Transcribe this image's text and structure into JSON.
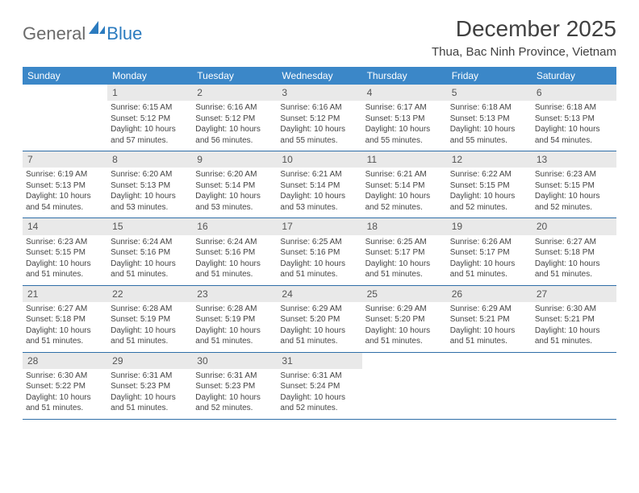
{
  "logo": {
    "general": "General",
    "blue": "Blue"
  },
  "title": "December 2025",
  "location": "Thua, Bac Ninh Province, Vietnam",
  "weekdays": [
    "Sunday",
    "Monday",
    "Tuesday",
    "Wednesday",
    "Thursday",
    "Friday",
    "Saturday"
  ],
  "header_bg": "#3b87c8",
  "daynum_bg": "#e9e9e9",
  "row_border": "#2f6ea8",
  "weeks": [
    [
      null,
      {
        "n": "1",
        "sr": "Sunrise: 6:15 AM",
        "ss": "Sunset: 5:12 PM",
        "dl": "Daylight: 10 hours and 57 minutes."
      },
      {
        "n": "2",
        "sr": "Sunrise: 6:16 AM",
        "ss": "Sunset: 5:12 PM",
        "dl": "Daylight: 10 hours and 56 minutes."
      },
      {
        "n": "3",
        "sr": "Sunrise: 6:16 AM",
        "ss": "Sunset: 5:12 PM",
        "dl": "Daylight: 10 hours and 55 minutes."
      },
      {
        "n": "4",
        "sr": "Sunrise: 6:17 AM",
        "ss": "Sunset: 5:13 PM",
        "dl": "Daylight: 10 hours and 55 minutes."
      },
      {
        "n": "5",
        "sr": "Sunrise: 6:18 AM",
        "ss": "Sunset: 5:13 PM",
        "dl": "Daylight: 10 hours and 55 minutes."
      },
      {
        "n": "6",
        "sr": "Sunrise: 6:18 AM",
        "ss": "Sunset: 5:13 PM",
        "dl": "Daylight: 10 hours and 54 minutes."
      }
    ],
    [
      {
        "n": "7",
        "sr": "Sunrise: 6:19 AM",
        "ss": "Sunset: 5:13 PM",
        "dl": "Daylight: 10 hours and 54 minutes."
      },
      {
        "n": "8",
        "sr": "Sunrise: 6:20 AM",
        "ss": "Sunset: 5:13 PM",
        "dl": "Daylight: 10 hours and 53 minutes."
      },
      {
        "n": "9",
        "sr": "Sunrise: 6:20 AM",
        "ss": "Sunset: 5:14 PM",
        "dl": "Daylight: 10 hours and 53 minutes."
      },
      {
        "n": "10",
        "sr": "Sunrise: 6:21 AM",
        "ss": "Sunset: 5:14 PM",
        "dl": "Daylight: 10 hours and 53 minutes."
      },
      {
        "n": "11",
        "sr": "Sunrise: 6:21 AM",
        "ss": "Sunset: 5:14 PM",
        "dl": "Daylight: 10 hours and 52 minutes."
      },
      {
        "n": "12",
        "sr": "Sunrise: 6:22 AM",
        "ss": "Sunset: 5:15 PM",
        "dl": "Daylight: 10 hours and 52 minutes."
      },
      {
        "n": "13",
        "sr": "Sunrise: 6:23 AM",
        "ss": "Sunset: 5:15 PM",
        "dl": "Daylight: 10 hours and 52 minutes."
      }
    ],
    [
      {
        "n": "14",
        "sr": "Sunrise: 6:23 AM",
        "ss": "Sunset: 5:15 PM",
        "dl": "Daylight: 10 hours and 51 minutes."
      },
      {
        "n": "15",
        "sr": "Sunrise: 6:24 AM",
        "ss": "Sunset: 5:16 PM",
        "dl": "Daylight: 10 hours and 51 minutes."
      },
      {
        "n": "16",
        "sr": "Sunrise: 6:24 AM",
        "ss": "Sunset: 5:16 PM",
        "dl": "Daylight: 10 hours and 51 minutes."
      },
      {
        "n": "17",
        "sr": "Sunrise: 6:25 AM",
        "ss": "Sunset: 5:16 PM",
        "dl": "Daylight: 10 hours and 51 minutes."
      },
      {
        "n": "18",
        "sr": "Sunrise: 6:25 AM",
        "ss": "Sunset: 5:17 PM",
        "dl": "Daylight: 10 hours and 51 minutes."
      },
      {
        "n": "19",
        "sr": "Sunrise: 6:26 AM",
        "ss": "Sunset: 5:17 PM",
        "dl": "Daylight: 10 hours and 51 minutes."
      },
      {
        "n": "20",
        "sr": "Sunrise: 6:27 AM",
        "ss": "Sunset: 5:18 PM",
        "dl": "Daylight: 10 hours and 51 minutes."
      }
    ],
    [
      {
        "n": "21",
        "sr": "Sunrise: 6:27 AM",
        "ss": "Sunset: 5:18 PM",
        "dl": "Daylight: 10 hours and 51 minutes."
      },
      {
        "n": "22",
        "sr": "Sunrise: 6:28 AM",
        "ss": "Sunset: 5:19 PM",
        "dl": "Daylight: 10 hours and 51 minutes."
      },
      {
        "n": "23",
        "sr": "Sunrise: 6:28 AM",
        "ss": "Sunset: 5:19 PM",
        "dl": "Daylight: 10 hours and 51 minutes."
      },
      {
        "n": "24",
        "sr": "Sunrise: 6:29 AM",
        "ss": "Sunset: 5:20 PM",
        "dl": "Daylight: 10 hours and 51 minutes."
      },
      {
        "n": "25",
        "sr": "Sunrise: 6:29 AM",
        "ss": "Sunset: 5:20 PM",
        "dl": "Daylight: 10 hours and 51 minutes."
      },
      {
        "n": "26",
        "sr": "Sunrise: 6:29 AM",
        "ss": "Sunset: 5:21 PM",
        "dl": "Daylight: 10 hours and 51 minutes."
      },
      {
        "n": "27",
        "sr": "Sunrise: 6:30 AM",
        "ss": "Sunset: 5:21 PM",
        "dl": "Daylight: 10 hours and 51 minutes."
      }
    ],
    [
      {
        "n": "28",
        "sr": "Sunrise: 6:30 AM",
        "ss": "Sunset: 5:22 PM",
        "dl": "Daylight: 10 hours and 51 minutes."
      },
      {
        "n": "29",
        "sr": "Sunrise: 6:31 AM",
        "ss": "Sunset: 5:23 PM",
        "dl": "Daylight: 10 hours and 51 minutes."
      },
      {
        "n": "30",
        "sr": "Sunrise: 6:31 AM",
        "ss": "Sunset: 5:23 PM",
        "dl": "Daylight: 10 hours and 52 minutes."
      },
      {
        "n": "31",
        "sr": "Sunrise: 6:31 AM",
        "ss": "Sunset: 5:24 PM",
        "dl": "Daylight: 10 hours and 52 minutes."
      },
      null,
      null,
      null
    ]
  ]
}
